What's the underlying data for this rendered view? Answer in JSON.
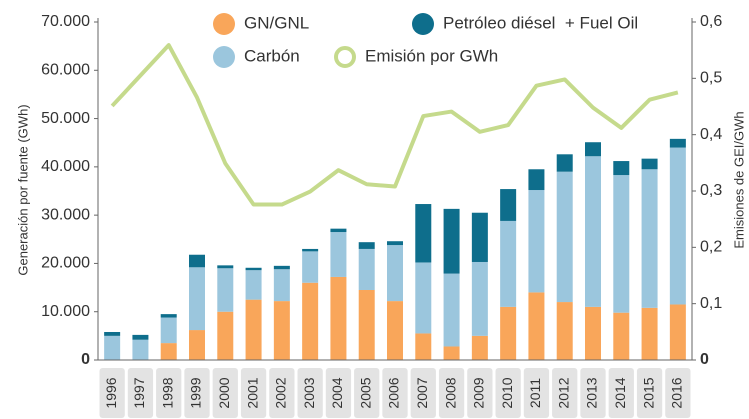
{
  "chart_data": {
    "type": "bar",
    "stacked": true,
    "categories": [
      "1996",
      "1997",
      "1998",
      "1999",
      "2000",
      "2001",
      "2002",
      "2003",
      "2004",
      "2005",
      "2006",
      "2007",
      "2008",
      "2009",
      "2010",
      "2011",
      "2012",
      "2013",
      "2014",
      "2015",
      "2016"
    ],
    "series": [
      {
        "name": "GN/GNL",
        "color": "#f9a65a",
        "values": [
          0,
          0,
          3500,
          6200,
          10000,
          12500,
          12200,
          16000,
          17200,
          14500,
          12200,
          5500,
          2800,
          5000,
          11000,
          14000,
          12000,
          11000,
          9800,
          10800,
          11500
        ]
      },
      {
        "name": "Carbón",
        "color": "#9bc6dd",
        "values": [
          5000,
          4200,
          5300,
          13000,
          9000,
          6100,
          6600,
          6500,
          9300,
          8500,
          11600,
          14700,
          15100,
          15300,
          17800,
          21200,
          27000,
          31200,
          28500,
          28700,
          32500
        ]
      },
      {
        "name": "Petróleo diésel  + Fuel Oil",
        "color": "#0e6e8c",
        "values": [
          800,
          1000,
          700,
          2600,
          600,
          500,
          700,
          500,
          700,
          1400,
          800,
          12100,
          13400,
          10200,
          6600,
          4300,
          3600,
          2900,
          2900,
          2200,
          1800
        ]
      },
      {
        "name": "Emisión por GWh",
        "type": "line",
        "axis": "y2",
        "color": "#c5da8c",
        "values": [
          0.451,
          0.505,
          0.559,
          0.466,
          0.349,
          0.276,
          0.276,
          0.299,
          0.337,
          0.312,
          0.308,
          0.433,
          0.441,
          0.405,
          0.417,
          0.487,
          0.498,
          0.448,
          0.412,
          0.462,
          0.475
        ]
      }
    ],
    "ylabel": "Generación por fuente (GWh)",
    "y2label": "Emisiones de GEI/GWh",
    "ylim": [
      0,
      70000
    ],
    "yticks": [
      0,
      {
        "value": 10000,
        "label": "10.000"
      },
      {
        "value": 20000,
        "label": "20.000"
      },
      {
        "value": 30000,
        "label": "30.000"
      },
      {
        "value": 40000,
        "label": "40.000"
      },
      {
        "value": 50000,
        "label": "50.000"
      },
      {
        "value": 60000,
        "label": "60.000"
      },
      {
        "value": 70000,
        "label": "70.000"
      }
    ],
    "y2lim": [
      0,
      0.6
    ],
    "y2ticks": [
      0,
      {
        "value": 0.1,
        "label": "0,1"
      },
      {
        "value": 0.2,
        "label": "0,2"
      },
      {
        "value": 0.3,
        "label": "0,3"
      },
      {
        "value": 0.4,
        "label": "0,4"
      },
      {
        "value": 0.5,
        "label": "0,5"
      },
      {
        "value": 0.6,
        "label": "0,6"
      }
    ]
  }
}
